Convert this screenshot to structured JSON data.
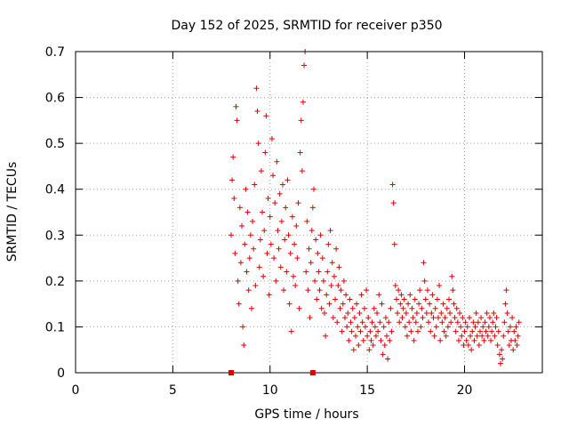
{
  "chart_data": {
    "type": "scatter",
    "title": "Day 152 of 2025, SRMTID for receiver p350",
    "xlabel": "GPS time / hours",
    "ylabel": "SRMTID / TECUs",
    "xlim": [
      0,
      24
    ],
    "ylim": [
      0,
      0.7
    ],
    "xticks": [
      0,
      5,
      10,
      15,
      20
    ],
    "xtick_labels": [
      "0",
      "5",
      "10",
      "15",
      "20"
    ],
    "yticks": [
      0,
      0.1,
      0.2,
      0.3,
      0.4,
      0.5,
      0.6,
      0.7
    ],
    "ytick_labels": [
      "0",
      "0.1",
      "0.2",
      "0.3",
      "0.4",
      "0.5",
      "0.6",
      "0.7"
    ],
    "grid": true,
    "marker": "+",
    "color": "#e00000",
    "axis_markers": [
      8.0,
      12.2
    ],
    "series": [
      {
        "name": "SRMTID",
        "points": [
          [
            8.0,
            0.3
          ],
          [
            8.05,
            0.42
          ],
          [
            8.1,
            0.47
          ],
          [
            8.15,
            0.38
          ],
          [
            8.2,
            0.26
          ],
          [
            8.25,
            0.58
          ],
          [
            8.3,
            0.55
          ],
          [
            8.35,
            0.2
          ],
          [
            8.4,
            0.15
          ],
          [
            8.45,
            0.36
          ],
          [
            8.5,
            0.24
          ],
          [
            8.55,
            0.32
          ],
          [
            8.6,
            0.1
          ],
          [
            8.65,
            0.06
          ],
          [
            8.7,
            0.28
          ],
          [
            8.75,
            0.4
          ],
          [
            8.8,
            0.22
          ],
          [
            8.85,
            0.35
          ],
          [
            8.9,
            0.18
          ],
          [
            8.95,
            0.25
          ],
          [
            9.0,
            0.3
          ],
          [
            9.05,
            0.14
          ],
          [
            9.1,
            0.33
          ],
          [
            9.15,
            0.27
          ],
          [
            9.2,
            0.41
          ],
          [
            9.25,
            0.19
          ],
          [
            9.3,
            0.62
          ],
          [
            9.35,
            0.57
          ],
          [
            9.4,
            0.5
          ],
          [
            9.45,
            0.23
          ],
          [
            9.5,
            0.29
          ],
          [
            9.55,
            0.44
          ],
          [
            9.6,
            0.35
          ],
          [
            9.65,
            0.21
          ],
          [
            9.7,
            0.31
          ],
          [
            9.75,
            0.48
          ],
          [
            9.8,
            0.56
          ],
          [
            9.85,
            0.26
          ],
          [
            9.9,
            0.38
          ],
          [
            9.95,
            0.17
          ],
          [
            10.0,
            0.34
          ],
          [
            10.05,
            0.28
          ],
          [
            10.1,
            0.51
          ],
          [
            10.15,
            0.43
          ],
          [
            10.2,
            0.25
          ],
          [
            10.25,
            0.37
          ],
          [
            10.3,
            0.2
          ],
          [
            10.35,
            0.46
          ],
          [
            10.4,
            0.31
          ],
          [
            10.45,
            0.27
          ],
          [
            10.5,
            0.39
          ],
          [
            10.55,
            0.23
          ],
          [
            10.6,
            0.33
          ],
          [
            10.65,
            0.41
          ],
          [
            10.7,
            0.18
          ],
          [
            10.75,
            0.29
          ],
          [
            10.8,
            0.36
          ],
          [
            10.85,
            0.22
          ],
          [
            10.9,
            0.42
          ],
          [
            10.95,
            0.3
          ],
          [
            11.0,
            0.15
          ],
          [
            11.05,
            0.26
          ],
          [
            11.1,
            0.09
          ],
          [
            11.15,
            0.34
          ],
          [
            11.2,
            0.21
          ],
          [
            11.25,
            0.28
          ],
          [
            11.3,
            0.19
          ],
          [
            11.35,
            0.32
          ],
          [
            11.4,
            0.25
          ],
          [
            11.45,
            0.37
          ],
          [
            11.5,
            0.14
          ],
          [
            11.55,
            0.48
          ],
          [
            11.6,
            0.55
          ],
          [
            11.65,
            0.44
          ],
          [
            11.7,
            0.59
          ],
          [
            11.75,
            0.67
          ],
          [
            11.8,
            0.7
          ],
          [
            11.85,
            0.22
          ],
          [
            11.9,
            0.33
          ],
          [
            11.95,
            0.18
          ],
          [
            12.0,
            0.27
          ],
          [
            12.05,
            0.12
          ],
          [
            12.1,
            0.24
          ],
          [
            12.15,
            0.31
          ],
          [
            12.2,
            0.36
          ],
          [
            12.25,
            0.4
          ],
          [
            12.3,
            0.2
          ],
          [
            12.35,
            0.29
          ],
          [
            12.4,
            0.16
          ],
          [
            12.45,
            0.26
          ],
          [
            12.5,
            0.22
          ],
          [
            12.55,
            0.18
          ],
          [
            12.6,
            0.3
          ],
          [
            12.65,
            0.14
          ],
          [
            12.7,
            0.25
          ],
          [
            12.75,
            0.2
          ],
          [
            12.8,
            0.13
          ],
          [
            12.85,
            0.08
          ],
          [
            12.9,
            0.17
          ],
          [
            12.95,
            0.22
          ],
          [
            13.0,
            0.28
          ],
          [
            13.05,
            0.15
          ],
          [
            13.1,
            0.31
          ],
          [
            13.15,
            0.19
          ],
          [
            13.2,
            0.24
          ],
          [
            13.25,
            0.12
          ],
          [
            13.3,
            0.21
          ],
          [
            13.35,
            0.16
          ],
          [
            13.4,
            0.27
          ],
          [
            13.45,
            0.11
          ],
          [
            13.5,
            0.19
          ],
          [
            13.55,
            0.23
          ],
          [
            13.6,
            0.14
          ],
          [
            13.65,
            0.18
          ],
          [
            13.7,
            0.09
          ],
          [
            13.75,
            0.15
          ],
          [
            13.8,
            0.2
          ],
          [
            13.85,
            0.12
          ],
          [
            13.9,
            0.17
          ],
          [
            13.95,
            0.1
          ],
          [
            14.0,
            0.13
          ],
          [
            14.05,
            0.07
          ],
          [
            14.1,
            0.16
          ],
          [
            14.15,
            0.11
          ],
          [
            14.2,
            0.09
          ],
          [
            14.25,
            0.14
          ],
          [
            14.3,
            0.05
          ],
          [
            14.35,
            0.12
          ],
          [
            14.4,
            0.08
          ],
          [
            14.45,
            0.15
          ],
          [
            14.5,
            0.1
          ],
          [
            14.55,
            0.06
          ],
          [
            14.6,
            0.13
          ],
          [
            14.65,
            0.09
          ],
          [
            14.7,
            0.17
          ],
          [
            14.75,
            0.11
          ],
          [
            14.8,
            0.07
          ],
          [
            14.85,
            0.14
          ],
          [
            14.9,
            0.1
          ],
          [
            14.95,
            0.18
          ],
          [
            15.0,
            0.08
          ],
          [
            15.05,
            0.12
          ],
          [
            15.1,
            0.05
          ],
          [
            15.15,
            0.09
          ],
          [
            15.2,
            0.07
          ],
          [
            15.25,
            0.11
          ],
          [
            15.3,
            0.06
          ],
          [
            15.35,
            0.14
          ],
          [
            15.4,
            0.1
          ],
          [
            15.45,
            0.08
          ],
          [
            15.5,
            0.13
          ],
          [
            15.55,
            0.09
          ],
          [
            15.6,
            0.17
          ],
          [
            15.65,
            0.11
          ],
          [
            15.7,
            0.07
          ],
          [
            15.75,
            0.15
          ],
          [
            15.8,
            0.04
          ],
          [
            15.85,
            0.1
          ],
          [
            15.9,
            0.06
          ],
          [
            15.95,
            0.12
          ],
          [
            16.0,
            0.08
          ],
          [
            16.05,
            0.03
          ],
          [
            16.1,
            0.11
          ],
          [
            16.15,
            0.07
          ],
          [
            16.2,
            0.14
          ],
          [
            16.25,
            0.09
          ],
          [
            16.3,
            0.41
          ],
          [
            16.35,
            0.37
          ],
          [
            16.4,
            0.28
          ],
          [
            16.45,
            0.19
          ],
          [
            16.5,
            0.16
          ],
          [
            16.55,
            0.13
          ],
          [
            16.6,
            0.18
          ],
          [
            16.65,
            0.11
          ],
          [
            16.7,
            0.15
          ],
          [
            16.75,
            0.17
          ],
          [
            16.8,
            0.12
          ],
          [
            16.85,
            0.14
          ],
          [
            16.9,
            0.16
          ],
          [
            16.95,
            0.1
          ],
          [
            17.0,
            0.13
          ],
          [
            17.05,
            0.08
          ],
          [
            17.1,
            0.15
          ],
          [
            17.15,
            0.11
          ],
          [
            17.2,
            0.17
          ],
          [
            17.25,
            0.09
          ],
          [
            17.3,
            0.14
          ],
          [
            17.35,
            0.12
          ],
          [
            17.4,
            0.07
          ],
          [
            17.45,
            0.16
          ],
          [
            17.5,
            0.11
          ],
          [
            17.55,
            0.13
          ],
          [
            17.6,
            0.09
          ],
          [
            17.65,
            0.15
          ],
          [
            17.7,
            0.18
          ],
          [
            17.75,
            0.1
          ],
          [
            17.8,
            0.14
          ],
          [
            17.85,
            0.12
          ],
          [
            17.9,
            0.24
          ],
          [
            17.95,
            0.2
          ],
          [
            18.0,
            0.16
          ],
          [
            18.05,
            0.13
          ],
          [
            18.1,
            0.18
          ],
          [
            18.15,
            0.11
          ],
          [
            18.2,
            0.15
          ],
          [
            18.25,
            0.09
          ],
          [
            18.3,
            0.13
          ],
          [
            18.35,
            0.17
          ],
          [
            18.4,
            0.12
          ],
          [
            18.45,
            0.08
          ],
          [
            18.5,
            0.14
          ],
          [
            18.55,
            0.1
          ],
          [
            18.6,
            0.16
          ],
          [
            18.65,
            0.12
          ],
          [
            18.7,
            0.19
          ],
          [
            18.75,
            0.07
          ],
          [
            18.8,
            0.13
          ],
          [
            18.85,
            0.11
          ],
          [
            18.9,
            0.15
          ],
          [
            18.95,
            0.09
          ],
          [
            19.0,
            0.12
          ],
          [
            19.05,
            0.08
          ],
          [
            19.1,
            0.14
          ],
          [
            19.15,
            0.1
          ],
          [
            19.2,
            0.16
          ],
          [
            19.25,
            0.13
          ],
          [
            19.3,
            0.11
          ],
          [
            19.35,
            0.21
          ],
          [
            19.4,
            0.18
          ],
          [
            19.45,
            0.15
          ],
          [
            19.5,
            0.12
          ],
          [
            19.55,
            0.09
          ],
          [
            19.6,
            0.14
          ],
          [
            19.65,
            0.11
          ],
          [
            19.7,
            0.07
          ],
          [
            19.75,
            0.13
          ],
          [
            19.8,
            0.1
          ],
          [
            19.85,
            0.08
          ],
          [
            19.9,
            0.12
          ],
          [
            19.95,
            0.06
          ],
          [
            20.0,
            0.09
          ],
          [
            20.05,
            0.11
          ],
          [
            20.1,
            0.07
          ],
          [
            20.15,
            0.1
          ],
          [
            20.2,
            0.06
          ],
          [
            20.25,
            0.12
          ],
          [
            20.3,
            0.08
          ],
          [
            20.35,
            0.05
          ],
          [
            20.4,
            0.09
          ],
          [
            20.45,
            0.11
          ],
          [
            20.5,
            0.07
          ],
          [
            20.55,
            0.1
          ],
          [
            20.6,
            0.13
          ],
          [
            20.65,
            0.08
          ],
          [
            20.7,
            0.11
          ],
          [
            20.75,
            0.06
          ],
          [
            20.8,
            0.09
          ],
          [
            20.85,
            0.12
          ],
          [
            20.9,
            0.08
          ],
          [
            20.95,
            0.1
          ],
          [
            21.0,
            0.07
          ],
          [
            21.05,
            0.11
          ],
          [
            21.1,
            0.09
          ],
          [
            21.15,
            0.13
          ],
          [
            21.2,
            0.08
          ],
          [
            21.25,
            0.1
          ],
          [
            21.3,
            0.12
          ],
          [
            21.35,
            0.07
          ],
          [
            21.4,
            0.09
          ],
          [
            21.45,
            0.11
          ],
          [
            21.5,
            0.13
          ],
          [
            21.55,
            0.08
          ],
          [
            21.6,
            0.1
          ],
          [
            21.65,
            0.12
          ],
          [
            21.7,
            0.06
          ],
          [
            21.75,
            0.09
          ],
          [
            21.8,
            0.04
          ],
          [
            21.85,
            0.02
          ],
          [
            21.9,
            0.05
          ],
          [
            21.95,
            0.03
          ],
          [
            22.0,
            0.08
          ],
          [
            22.05,
            0.11
          ],
          [
            22.1,
            0.15
          ],
          [
            22.15,
            0.18
          ],
          [
            22.2,
            0.13
          ],
          [
            22.25,
            0.09
          ],
          [
            22.3,
            0.06
          ],
          [
            22.35,
            0.1
          ],
          [
            22.4,
            0.07
          ],
          [
            22.45,
            0.12
          ],
          [
            22.5,
            0.05
          ],
          [
            22.55,
            0.09
          ],
          [
            22.6,
            0.07
          ],
          [
            22.65,
            0.1
          ],
          [
            22.7,
            0.06
          ],
          [
            22.75,
            0.08
          ],
          [
            22.8,
            0.11
          ]
        ]
      }
    ]
  }
}
